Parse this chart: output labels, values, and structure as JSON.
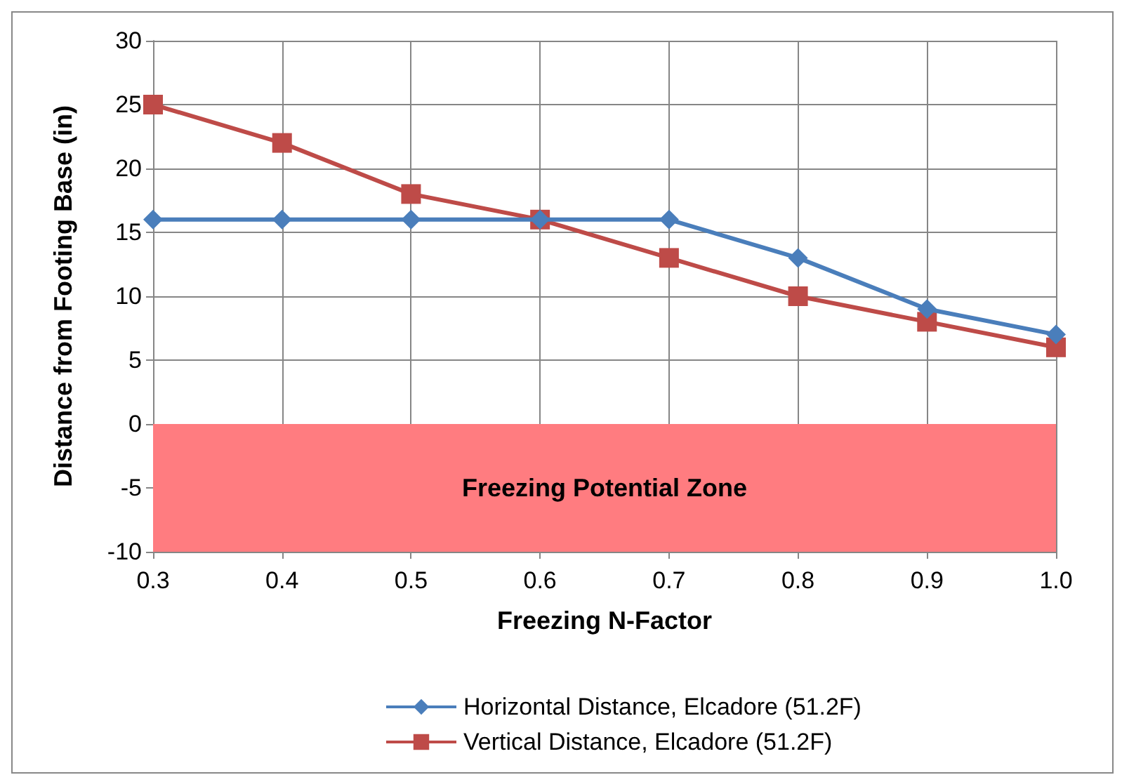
{
  "chart_data": {
    "type": "line",
    "xlabel": "Freezing N-Factor",
    "ylabel": "Distance from Footing Base (in)",
    "x": [
      0.3,
      0.4,
      0.5,
      0.6,
      0.7,
      0.8,
      0.9,
      1.0
    ],
    "series": [
      {
        "name": "Horizontal Distance, Elcadore (51.2F)",
        "color": "#4a7ebb",
        "marker": "diamond",
        "values": [
          16,
          16,
          16,
          16,
          16,
          13,
          9,
          7
        ]
      },
      {
        "name": "Vertical Distance, Elcadore (51.2F)",
        "color": "#be4b48",
        "marker": "square",
        "values": [
          25,
          22,
          18,
          16,
          13,
          10,
          8,
          6
        ]
      }
    ],
    "xlim": [
      0.3,
      1.0
    ],
    "xticks": [
      0.3,
      0.4,
      0.5,
      0.6,
      0.7,
      0.8,
      0.9,
      {
        "value": 1,
        "label": "1.0"
      }
    ],
    "ylim": [
      -10,
      30
    ],
    "yticks": [
      -10,
      -5,
      0,
      5,
      10,
      15,
      20,
      25,
      30
    ],
    "bands": [
      {
        "axis": "y",
        "from": -10,
        "to": 0,
        "label": "Freezing Potential Zone",
        "color": "#ff7c80"
      }
    ],
    "grid": true,
    "legend": "bottom"
  }
}
